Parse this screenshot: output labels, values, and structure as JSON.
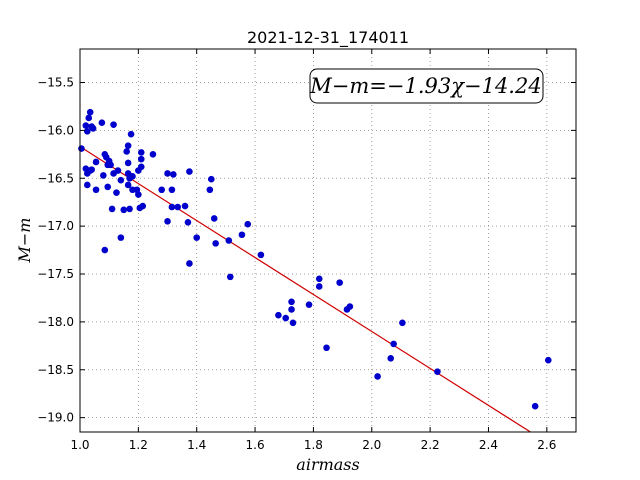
{
  "chart_data": {
    "type": "scatter",
    "title": "2021-12-31_174011",
    "xlabel": "airmass",
    "ylabel": "M−m",
    "xlim": [
      1.0,
      2.7
    ],
    "ylim": [
      -19.15,
      -15.15
    ],
    "xticks": [
      "1.0",
      "1.2",
      "1.4",
      "1.6",
      "1.8",
      "2.0",
      "2.2",
      "2.4",
      "2.6"
    ],
    "yticks": [
      "−15.5",
      "−16.0",
      "−16.5",
      "−17.0",
      "−17.5",
      "−18.0",
      "−18.5",
      "−19.0"
    ],
    "grid": true,
    "annotation": "M−m=−1.93χ−14.24",
    "fit": {
      "slope": -1.93,
      "intercept": -14.24,
      "x_range": [
        1.0,
        2.6
      ],
      "color": "#d00000"
    },
    "point_color": "#0000cc",
    "points": [
      [
        1.005,
        -16.19
      ],
      [
        1.02,
        -15.95
      ],
      [
        1.025,
        -16.01
      ],
      [
        1.03,
        -15.87
      ],
      [
        1.035,
        -15.81
      ],
      [
        1.045,
        -15.98
      ],
      [
        1.04,
        -15.96
      ],
      [
        1.02,
        -16.4
      ],
      [
        1.025,
        -16.45
      ],
      [
        1.035,
        -16.42
      ],
      [
        1.04,
        -16.41
      ],
      [
        1.055,
        -16.33
      ],
      [
        1.025,
        -16.57
      ],
      [
        1.055,
        -16.62
      ],
      [
        1.075,
        -15.92
      ],
      [
        1.085,
        -16.25
      ],
      [
        1.09,
        -16.28
      ],
      [
        1.1,
        -16.32
      ],
      [
        1.095,
        -16.36
      ],
      [
        1.105,
        -16.36
      ],
      [
        1.08,
        -16.47
      ],
      [
        1.115,
        -16.45
      ],
      [
        1.095,
        -16.59
      ],
      [
        1.11,
        -16.82
      ],
      [
        1.125,
        -16.65
      ],
      [
        1.085,
        -17.25
      ],
      [
        1.115,
        -15.94
      ],
      [
        1.13,
        -16.42
      ],
      [
        1.14,
        -16.52
      ],
      [
        1.15,
        -16.83
      ],
      [
        1.14,
        -17.12
      ],
      [
        1.16,
        -16.22
      ],
      [
        1.165,
        -16.16
      ],
      [
        1.165,
        -16.34
      ],
      [
        1.165,
        -16.45
      ],
      [
        1.17,
        -16.5
      ],
      [
        1.165,
        -16.57
      ],
      [
        1.17,
        -16.82
      ],
      [
        1.175,
        -16.04
      ],
      [
        1.18,
        -16.48
      ],
      [
        1.18,
        -16.62
      ],
      [
        1.195,
        -16.62
      ],
      [
        1.2,
        -16.67
      ],
      [
        1.21,
        -16.23
      ],
      [
        1.21,
        -16.3
      ],
      [
        1.21,
        -16.38
      ],
      [
        1.2,
        -16.42
      ],
      [
        1.215,
        -16.79
      ],
      [
        1.205,
        -16.81
      ],
      [
        1.25,
        -16.25
      ],
      [
        1.28,
        -16.62
      ],
      [
        1.3,
        -16.45
      ],
      [
        1.32,
        -16.46
      ],
      [
        1.315,
        -16.62
      ],
      [
        1.315,
        -16.8
      ],
      [
        1.3,
        -16.95
      ],
      [
        1.335,
        -16.8
      ],
      [
        1.36,
        -16.79
      ],
      [
        1.375,
        -16.43
      ],
      [
        1.37,
        -16.96
      ],
      [
        1.4,
        -17.12
      ],
      [
        1.375,
        -17.39
      ],
      [
        1.445,
        -16.62
      ],
      [
        1.45,
        -16.51
      ],
      [
        1.46,
        -16.92
      ],
      [
        1.465,
        -17.18
      ],
      [
        1.51,
        -17.15
      ],
      [
        1.515,
        -17.53
      ],
      [
        1.555,
        -17.09
      ],
      [
        1.575,
        -16.98
      ],
      [
        1.62,
        -17.3
      ],
      [
        1.68,
        -17.93
      ],
      [
        1.705,
        -17.96
      ],
      [
        1.725,
        -17.79
      ],
      [
        1.725,
        -17.87
      ],
      [
        1.73,
        -18.01
      ],
      [
        1.785,
        -17.82
      ],
      [
        1.82,
        -17.63
      ],
      [
        1.82,
        -17.55
      ],
      [
        1.845,
        -18.27
      ],
      [
        1.89,
        -17.59
      ],
      [
        1.915,
        -17.87
      ],
      [
        1.925,
        -17.84
      ],
      [
        2.02,
        -18.57
      ],
      [
        2.065,
        -18.38
      ],
      [
        2.075,
        -18.23
      ],
      [
        2.105,
        -18.01
      ],
      [
        2.225,
        -18.52
      ],
      [
        2.56,
        -18.88
      ],
      [
        2.605,
        -18.4
      ]
    ]
  }
}
